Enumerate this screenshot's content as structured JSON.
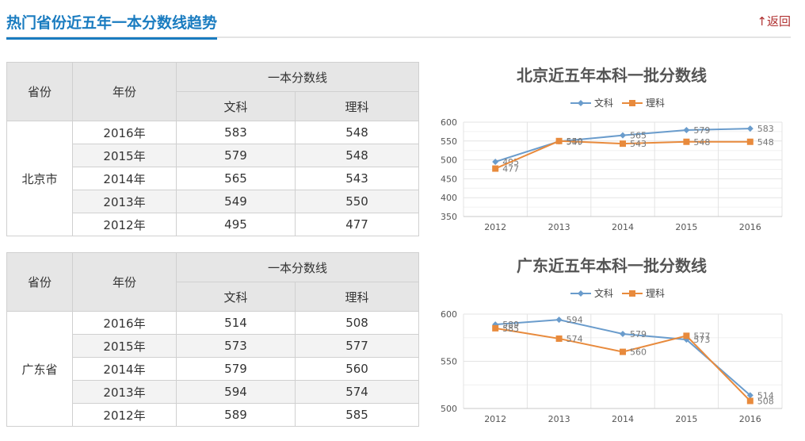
{
  "header": {
    "title": "热门省份近五年一本分数线趋势",
    "back_label": "↑返回"
  },
  "table_headers": {
    "province": "省份",
    "year": "年份",
    "group": "一本分数线",
    "wen": "文科",
    "li": "理科"
  },
  "colors": {
    "wen": "#6a9ccc",
    "li": "#e88a3c",
    "title": "#1a7cc0"
  },
  "tables": [
    {
      "province": "北京市",
      "rows": [
        {
          "year": "2016年",
          "wen": "583",
          "li": "548"
        },
        {
          "year": "2015年",
          "wen": "579",
          "li": "548"
        },
        {
          "year": "2014年",
          "wen": "565",
          "li": "543"
        },
        {
          "year": "2013年",
          "wen": "549",
          "li": "550"
        },
        {
          "year": "2012年",
          "wen": "495",
          "li": "477"
        }
      ]
    },
    {
      "province": "广东省",
      "rows": [
        {
          "year": "2016年",
          "wen": "514",
          "li": "508"
        },
        {
          "year": "2015年",
          "wen": "573",
          "li": "577"
        },
        {
          "year": "2014年",
          "wen": "579",
          "li": "560"
        },
        {
          "year": "2013年",
          "wen": "594",
          "li": "574"
        },
        {
          "year": "2012年",
          "wen": "589",
          "li": "585"
        }
      ]
    }
  ],
  "chart_data": [
    {
      "type": "line",
      "title": "北京近五年本科一批分数线",
      "categories": [
        "2012",
        "2013",
        "2014",
        "2015",
        "2016"
      ],
      "series": [
        {
          "name": "文科",
          "values": [
            495,
            549,
            565,
            579,
            583
          ]
        },
        {
          "name": "理科",
          "values": [
            477,
            550,
            543,
            548,
            548
          ]
        }
      ],
      "ylim": [
        350,
        600
      ],
      "yticks": [
        350,
        400,
        450,
        500,
        550,
        600
      ],
      "grid": true,
      "legend": "top"
    },
    {
      "type": "line",
      "title": "广东近五年本科一批分数线",
      "categories": [
        "2012",
        "2013",
        "2014",
        "2015",
        "2016"
      ],
      "series": [
        {
          "name": "文科",
          "values": [
            589,
            594,
            579,
            573,
            514
          ]
        },
        {
          "name": "理科",
          "values": [
            585,
            574,
            560,
            577,
            508
          ]
        }
      ],
      "ylim": [
        500,
        600
      ],
      "yticks": [
        500,
        550,
        600
      ],
      "grid": true,
      "legend": "top"
    }
  ]
}
